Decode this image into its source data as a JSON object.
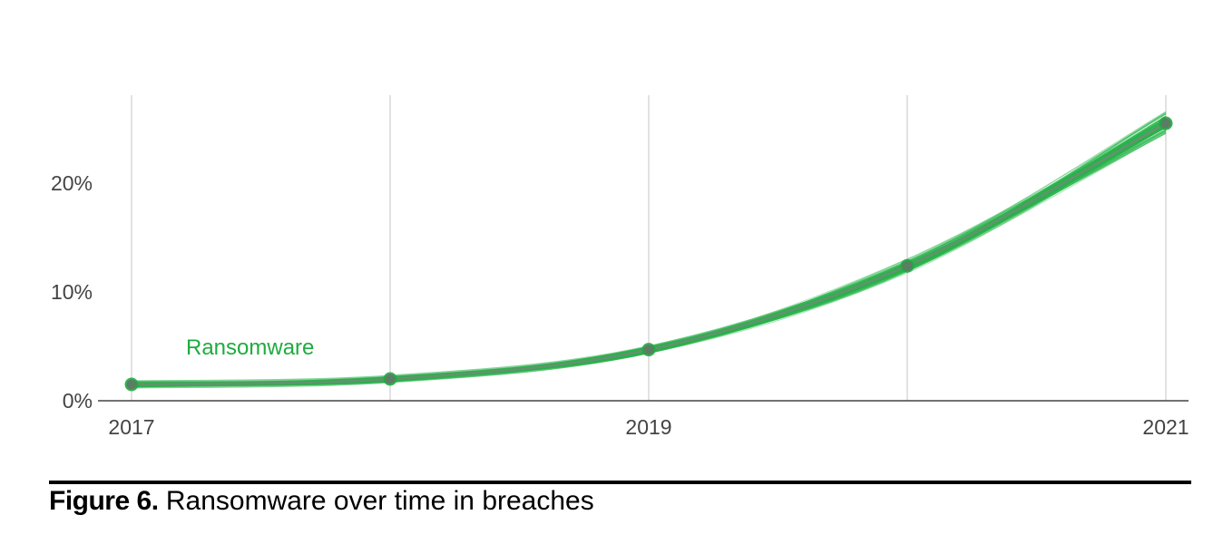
{
  "chart_data": {
    "type": "line",
    "x": [
      "2017",
      "2018",
      "2019",
      "2020",
      "2021"
    ],
    "x_tick_labels": [
      "2017",
      "",
      "2019",
      "",
      "2021"
    ],
    "y_ticks": [
      0,
      10,
      20
    ],
    "y_tick_labels": [
      "0%",
      "10%",
      "20%"
    ],
    "ylim": [
      0,
      27
    ],
    "xlabel": "",
    "ylabel": "",
    "grid": "vertical",
    "series": [
      {
        "name": "Ransomware",
        "values": [
          1.5,
          2.0,
          4.7,
          12.4,
          25.5
        ],
        "color": "#1fab3f",
        "uncertainty_band": "many thin simulated lines around the mean"
      }
    ]
  },
  "colors": {
    "series": "#1fab3f",
    "series_thin": "#33bb55",
    "mean_line": "#6a8f74",
    "marker": "#5c7d65",
    "gridline": "#d8d8d8",
    "axis": "#444444",
    "tick_text": "#444444"
  },
  "caption": {
    "figure": "Figure 6.",
    "text": " Ransomware over time in breaches"
  }
}
